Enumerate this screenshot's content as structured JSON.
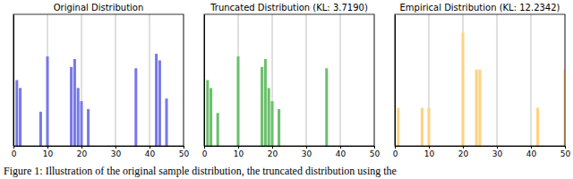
{
  "chart_data": [
    {
      "type": "bar",
      "title": "Original Distribution",
      "x": [
        1,
        2,
        8,
        10,
        17,
        18,
        19,
        20,
        22,
        36,
        42,
        43,
        45
      ],
      "values": [
        0.5,
        0.44,
        0.26,
        0.68,
        0.6,
        0.66,
        0.44,
        0.34,
        0.28,
        0.59,
        0.7,
        0.65,
        0.36
      ],
      "color": "#7878e8",
      "xlim": [
        0,
        50
      ],
      "xticks": [
        0,
        10,
        20,
        30,
        40,
        50
      ],
      "ylim": [
        0,
        1
      ],
      "grid": true,
      "tick_labels": "x"
    },
    {
      "type": "bar",
      "title": "Truncated Distribution (KL: 3.7190)",
      "x": [
        1,
        2,
        4,
        10,
        17,
        18,
        19,
        20,
        22,
        36
      ],
      "values": [
        0.5,
        0.44,
        0.25,
        0.68,
        0.6,
        0.66,
        0.44,
        0.34,
        0.28,
        0.59
      ],
      "color": "#6cbf6c",
      "xlim": [
        0,
        50
      ],
      "xticks": [
        0,
        10,
        20,
        30,
        40,
        50
      ],
      "ylim": [
        0,
        1
      ],
      "grid": true,
      "tick_labels": "x"
    },
    {
      "type": "bar",
      "title": "Empirical Distribution (KL: 12.2342)",
      "x": [
        1,
        8,
        10,
        20,
        24,
        25,
        42,
        50
      ],
      "values": [
        0.29,
        0.29,
        0.29,
        0.86,
        0.58,
        0.58,
        0.29,
        0.58
      ],
      "color": "#ffd27f",
      "xlim": [
        0,
        50
      ],
      "xticks": [
        0,
        10,
        20,
        30,
        40,
        50
      ],
      "ylim": [
        0,
        1
      ],
      "grid": true,
      "tick_labels": "x"
    }
  ],
  "caption": "Figure 1: Illustration of the original sample distribution, the truncated distribution using the"
}
